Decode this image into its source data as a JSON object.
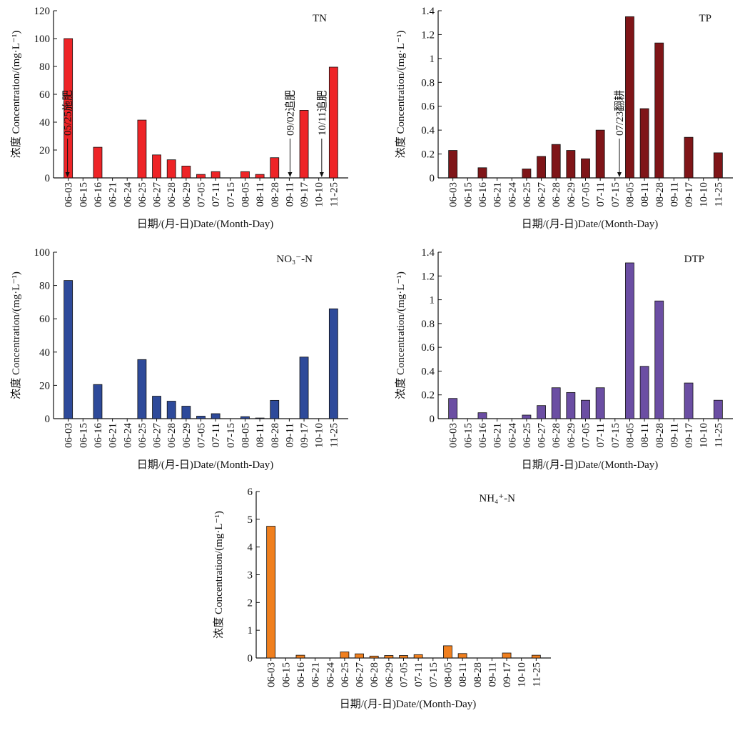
{
  "chart_data": [
    {
      "type": "bar",
      "title": "TN",
      "ylabel": "浓度 Concentration/(mg·L⁻¹)",
      "xlabel": "日期/(月-日)Date/(Month-Day)",
      "color": "#ee2427",
      "categories": [
        "06-03",
        "06-15",
        "06-16",
        "06-21",
        "06-24",
        "06-25",
        "06-27",
        "06-28",
        "06-29",
        "07-05",
        "07-11",
        "07-15",
        "08-05",
        "08-11",
        "08-28",
        "09-11",
        "09-17",
        "10-10",
        "11-25"
      ],
      "values": [
        100,
        0,
        22,
        0,
        0,
        41.5,
        16.5,
        13,
        8.5,
        2.5,
        4.5,
        0,
        4.5,
        2.5,
        14.5,
        0,
        48.5,
        0,
        79.5
      ],
      "ylim": [
        0,
        120
      ],
      "yticks": [
        0,
        20,
        40,
        60,
        80,
        100,
        120
      ],
      "annotations": [
        {
          "text": "05/25施肥",
          "index": -0.05
        },
        {
          "text": "09/02追肥",
          "index": 15.05
        },
        {
          "text": "10/11追肥",
          "index": 17.2
        }
      ]
    },
    {
      "type": "bar",
      "title": "TP",
      "ylabel": "浓度 Concentration/(mg·L⁻¹)",
      "xlabel": "日期/(月-日)Date/(Month-Day)",
      "color": "#7f1518",
      "categories": [
        "06-03",
        "06-15",
        "06-16",
        "06-21",
        "06-24",
        "06-25",
        "06-27",
        "06-28",
        "06-29",
        "07-05",
        "07-11",
        "07-15",
        "08-05",
        "08-11",
        "08-28",
        "09-11",
        "09-17",
        "10-10",
        "11-25"
      ],
      "values": [
        0.23,
        0,
        0.085,
        0,
        0,
        0.075,
        0.18,
        0.28,
        0.23,
        0.16,
        0.4,
        0,
        1.35,
        0.58,
        1.13,
        0,
        0.34,
        0,
        0.21
      ],
      "ylim": [
        0,
        1.4
      ],
      "yticks": [
        0,
        0.2,
        0.4,
        0.6,
        0.8,
        1.0,
        1.2,
        1.4
      ],
      "annotations": [
        {
          "text": "07/23翻耕",
          "index": 11.3
        }
      ]
    },
    {
      "type": "bar",
      "title": "NO₃⁻-N",
      "ylabel": "浓度 Concentration/(mg·L⁻¹)",
      "xlabel": "日期/(月-日)Date/(Month-Day)",
      "color": "#2e4a9a",
      "categories": [
        "06-03",
        "06-15",
        "06-16",
        "06-21",
        "06-24",
        "06-25",
        "06-27",
        "06-28",
        "06-29",
        "07-05",
        "07-11",
        "07-15",
        "08-05",
        "08-11",
        "08-28",
        "09-11",
        "09-17",
        "10-10",
        "11-25"
      ],
      "values": [
        83,
        0,
        20.5,
        0,
        0,
        35.5,
        13.5,
        10.5,
        7.5,
        1.5,
        3,
        0,
        1.2,
        0.4,
        11,
        0,
        37,
        0,
        66
      ],
      "ylim": [
        0,
        100
      ],
      "yticks": [
        0,
        20,
        40,
        60,
        80,
        100
      ],
      "annotations": []
    },
    {
      "type": "bar",
      "title": "DTP",
      "ylabel": "浓度 Concentration/(mg·L⁻¹)",
      "xlabel": "日期/(月-日)Date/(Month-Day)",
      "color": "#6b4ea3",
      "categories": [
        "06-03",
        "06-15",
        "06-16",
        "06-21",
        "06-24",
        "06-25",
        "06-27",
        "06-28",
        "06-29",
        "07-05",
        "07-11",
        "07-15",
        "08-05",
        "08-11",
        "08-28",
        "09-11",
        "09-17",
        "10-10",
        "11-25"
      ],
      "values": [
        0.17,
        0,
        0.05,
        0,
        0,
        0.03,
        0.11,
        0.26,
        0.22,
        0.155,
        0.26,
        0,
        1.31,
        0.44,
        0.99,
        0,
        0.3,
        0,
        0.155
      ],
      "ylim": [
        0,
        1.4
      ],
      "yticks": [
        0,
        0.2,
        0.4,
        0.6,
        0.8,
        1.0,
        1.2,
        1.4
      ],
      "annotations": []
    },
    {
      "type": "bar",
      "title": "NH₄⁺-N",
      "ylabel": "浓度 Concentration/(mg·L⁻¹)",
      "xlabel": "日期/(月-日)Date/(Month-Day)",
      "color": "#f07f1e",
      "categories": [
        "06-03",
        "06-15",
        "06-16",
        "06-21",
        "06-24",
        "06-25",
        "06-27",
        "06-28",
        "06-29",
        "07-05",
        "07-11",
        "07-15",
        "08-05",
        "08-11",
        "08-28",
        "09-11",
        "09-17",
        "10-10",
        "11-25"
      ],
      "values": [
        4.75,
        0,
        0.1,
        0,
        0,
        0.22,
        0.15,
        0.07,
        0.09,
        0.09,
        0.12,
        0,
        0.44,
        0.16,
        0,
        0,
        0.18,
        0,
        0.1
      ],
      "ylim": [
        0,
        6
      ],
      "yticks": [
        0,
        1,
        2,
        3,
        4,
        5,
        6
      ],
      "annotations": []
    }
  ]
}
